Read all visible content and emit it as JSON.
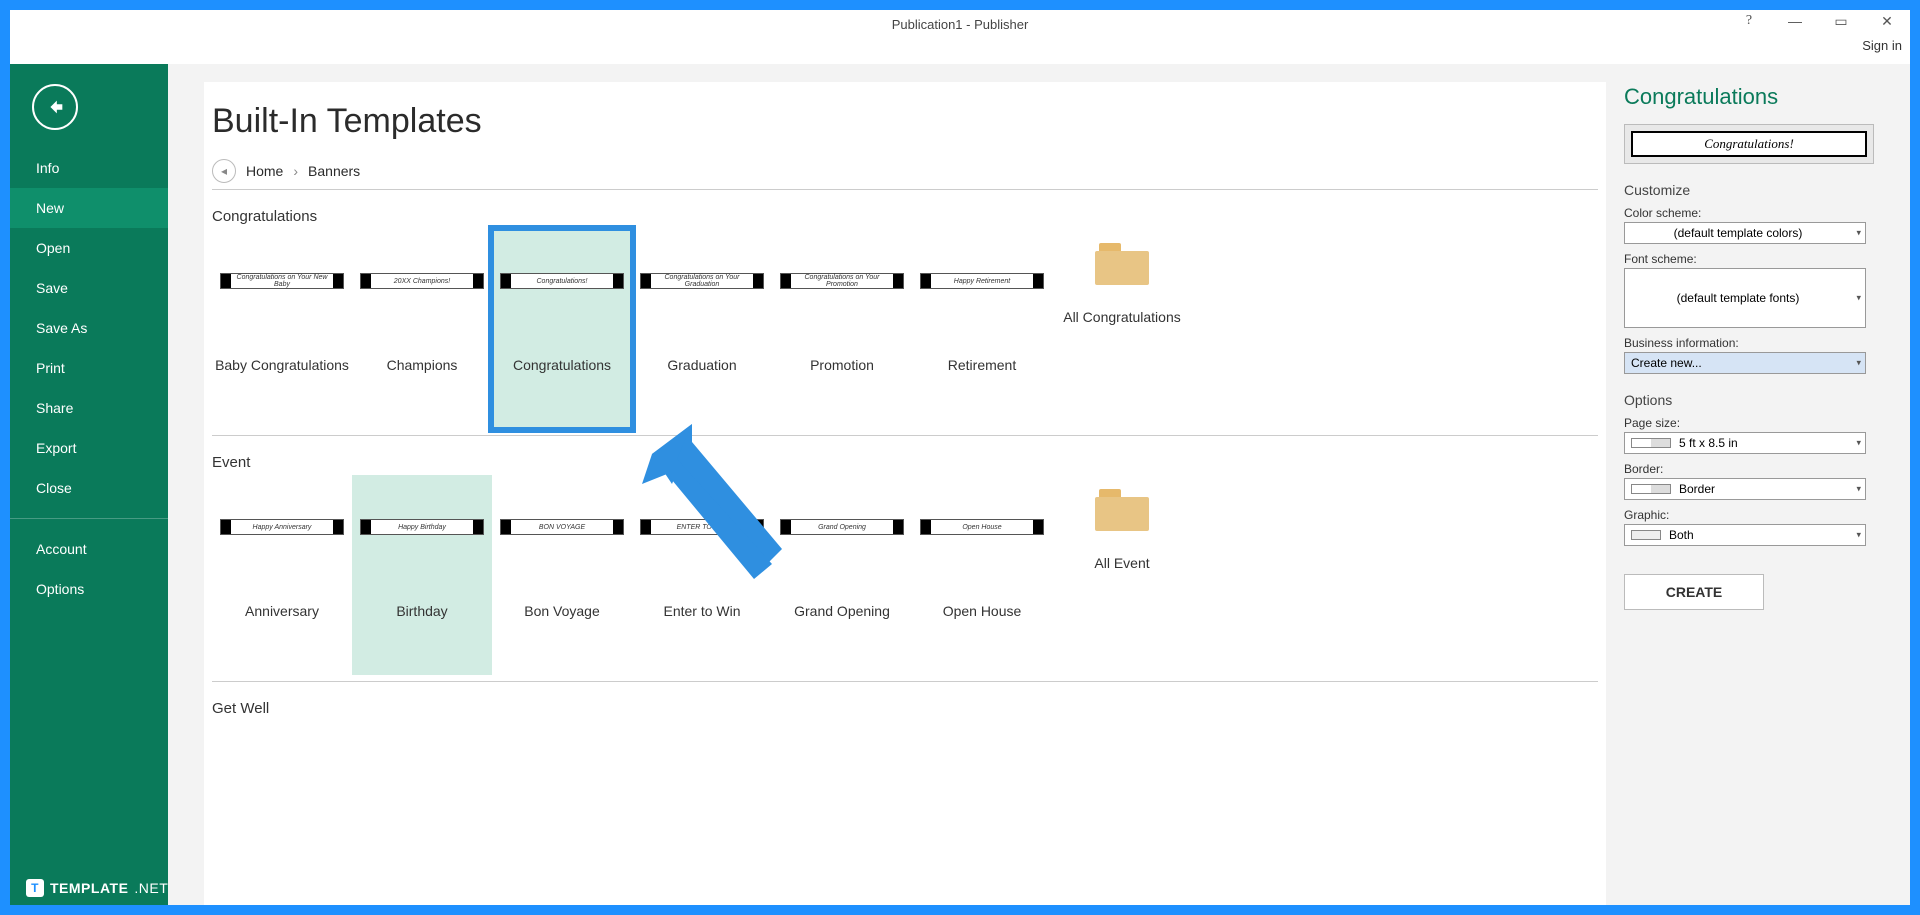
{
  "window": {
    "title": "Publication1 - Publisher",
    "sign_in": "Sign in"
  },
  "titlebar_controls": {
    "help": "?",
    "min": "—",
    "max": "▭",
    "close": "✕"
  },
  "nav": {
    "items": [
      {
        "label": "Info"
      },
      {
        "label": "New",
        "active": true
      },
      {
        "label": "Open"
      },
      {
        "label": "Save"
      },
      {
        "label": "Save As"
      },
      {
        "label": "Print"
      },
      {
        "label": "Share"
      },
      {
        "label": "Export"
      },
      {
        "label": "Close"
      }
    ],
    "footer": [
      {
        "label": "Account"
      },
      {
        "label": "Options"
      }
    ]
  },
  "page": {
    "heading": "Built-In Templates",
    "breadcrumb": {
      "home": "Home",
      "current": "Banners"
    }
  },
  "sections": [
    {
      "title": "Congratulations",
      "folder_label": "All Congratulations",
      "tiles": [
        {
          "label": "Baby Congratulations",
          "thumb_text": "Congratulations on Your New Baby"
        },
        {
          "label": "Champions",
          "thumb_text": "20XX Champions!"
        },
        {
          "label": "Congratulations",
          "thumb_text": "Congratulations!",
          "selected": true
        },
        {
          "label": "Graduation",
          "thumb_text": "Congratulations on Your Graduation"
        },
        {
          "label": "Promotion",
          "thumb_text": "Congratulations on Your Promotion"
        },
        {
          "label": "Retirement",
          "thumb_text": "Happy Retirement"
        }
      ]
    },
    {
      "title": "Event",
      "folder_label": "All Event",
      "tiles": [
        {
          "label": "Anniversary",
          "thumb_text": "Happy Anniversary"
        },
        {
          "label": "Birthday",
          "thumb_text": "Happy Birthday",
          "hover": true
        },
        {
          "label": "Bon Voyage",
          "thumb_text": "BON VOYAGE"
        },
        {
          "label": "Enter to Win",
          "thumb_text": "ENTER TO WIN"
        },
        {
          "label": "Grand Opening",
          "thumb_text": "Grand Opening"
        },
        {
          "label": "Open House",
          "thumb_text": "Open House"
        }
      ]
    },
    {
      "title": "Get Well",
      "tiles": []
    }
  ],
  "details": {
    "title": "Congratulations",
    "preview_text": "Congratulations!",
    "customize_h": "Customize",
    "color_scheme_label": "Color scheme:",
    "color_scheme_value": "(default template colors)",
    "font_scheme_label": "Font scheme:",
    "font_scheme_value": "(default template fonts)",
    "business_info_label": "Business information:",
    "business_info_value": "Create new...",
    "options_h": "Options",
    "page_size_label": "Page size:",
    "page_size_value": "5 ft x 8.5 in",
    "border_label": "Border:",
    "border_value": "Border",
    "graphic_label": "Graphic:",
    "graphic_value": "Both",
    "create_btn": "CREATE"
  },
  "watermark": {
    "badge": "T",
    "text1": "TEMPLATE",
    "text2": ".NET"
  },
  "colors": {
    "frame": "#1e90ff",
    "nav_bg": "#0a7a5a",
    "nav_active": "#0f8f6b",
    "accent": "#0a7a5a",
    "tile_hover": "#d2ece3",
    "select_border": "#2f8fe0"
  }
}
